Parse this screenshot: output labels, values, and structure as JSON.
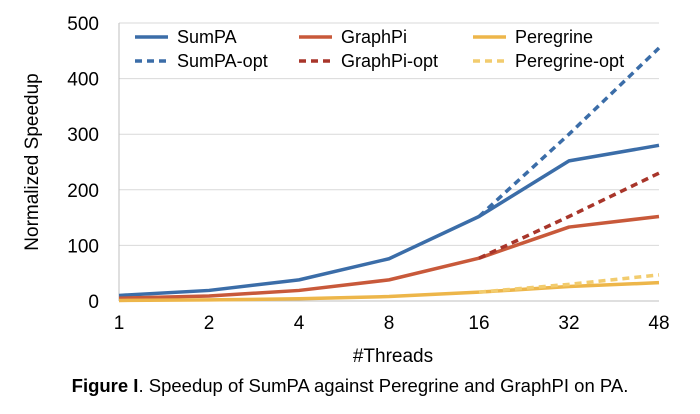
{
  "chart_data": {
    "type": "line",
    "xlabel": "#Threads",
    "ylabel": "Normalized Speedup",
    "categories": [
      "1",
      "2",
      "4",
      "8",
      "16",
      "32",
      "48"
    ],
    "ylim": [
      0,
      500
    ],
    "yticks": [
      0,
      100,
      200,
      300,
      400,
      500
    ],
    "grid": "horizontal",
    "legend": "top, three columns",
    "series": [
      {
        "name": "SumPA",
        "color": "#3B6DA8",
        "dash": "solid",
        "values": [
          10,
          19,
          38,
          76,
          152,
          252,
          280
        ]
      },
      {
        "name": "GraphPi",
        "color": "#C8593A",
        "dash": "solid",
        "values": [
          5,
          9,
          19,
          38,
          77,
          133,
          152
        ]
      },
      {
        "name": "Peregrine",
        "color": "#EDB64A",
        "dash": "solid",
        "values": [
          1,
          2,
          4,
          8,
          16,
          26,
          33
        ]
      },
      {
        "name": "SumPA-opt",
        "color": "#3B6DA8",
        "dash": "dashed",
        "values": [
          null,
          null,
          null,
          null,
          152,
          300,
          455
        ]
      },
      {
        "name": "GraphPi-opt",
        "color": "#A8352A",
        "dash": "dashed",
        "values": [
          null,
          null,
          null,
          null,
          77,
          152,
          230
        ]
      },
      {
        "name": "Peregrine-opt",
        "color": "#F2CC6E",
        "dash": "dashed",
        "values": [
          null,
          null,
          null,
          null,
          16,
          30,
          47
        ]
      }
    ]
  },
  "caption": {
    "label": "Figure I",
    "text": ". Speedup of SumPA against Peregrine and GraphPI on PA."
  }
}
